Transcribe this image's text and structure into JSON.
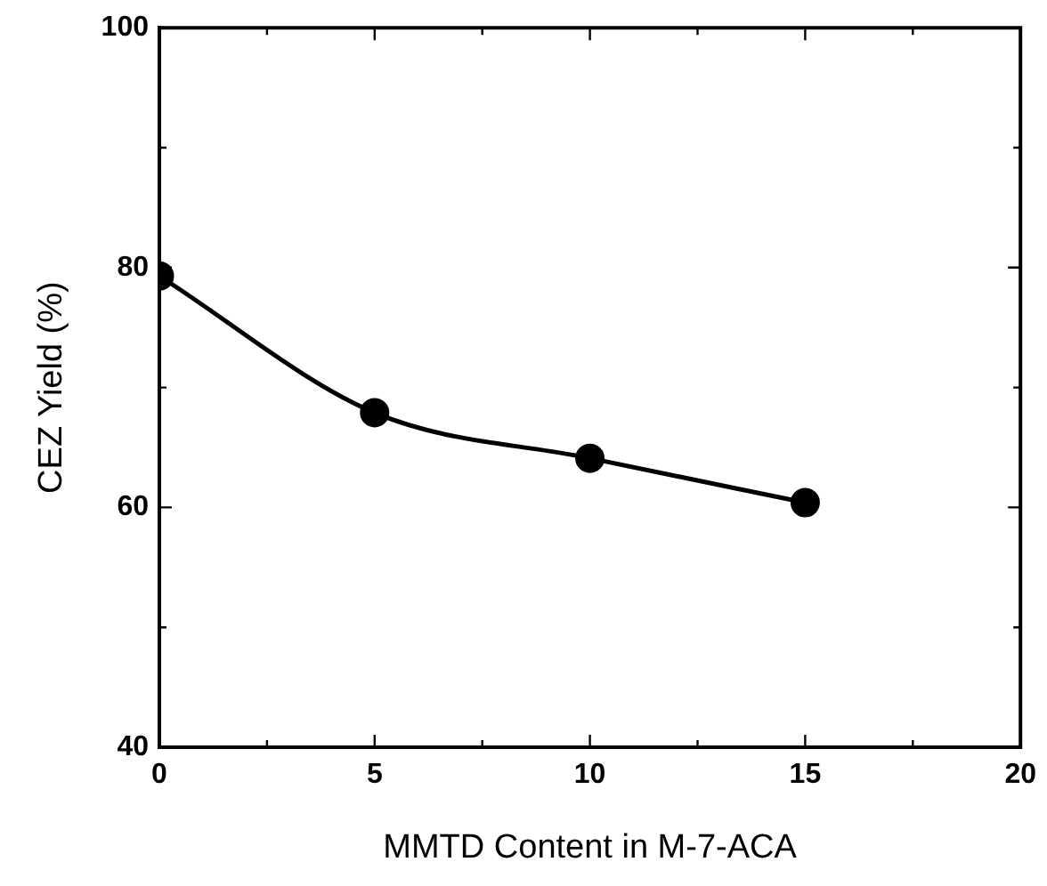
{
  "chart_data": {
    "type": "line",
    "xlabel": "MMTD Content in M-7-ACA",
    "ylabel": "CEZ Yield (%)",
    "x": [
      0,
      5,
      10,
      15
    ],
    "series": [
      {
        "color": "#000000",
        "values": [
          79.3,
          67.9,
          64.1,
          60.4
        ]
      }
    ],
    "xlim": [
      0,
      20
    ],
    "ylim": [
      40,
      100
    ],
    "xticks": [
      0,
      {
        "value": 2.5,
        "label": null
      },
      5,
      {
        "value": 7.5,
        "label": null
      },
      10,
      {
        "value": 12.5,
        "label": null
      },
      15,
      {
        "value": 17.5,
        "label": null
      },
      20
    ],
    "yticks": [
      40,
      {
        "value": 50,
        "label": null
      },
      60,
      {
        "value": 70,
        "label": null
      },
      80,
      {
        "value": 90,
        "label": null
      },
      100
    ],
    "grid": false,
    "legend": false,
    "marker": "circle",
    "line_style": "solid"
  }
}
